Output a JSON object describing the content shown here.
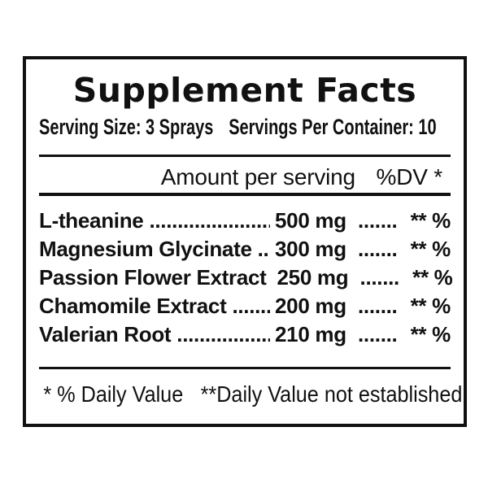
{
  "panel": {
    "title": "Supplement Facts",
    "serving": {
      "size_label": "Serving Size: 3 Sprays",
      "container_label": "Servings Per Container: 10"
    },
    "column_header": {
      "amount_label": "Amount per serving",
      "dv_label": "%DV *"
    },
    "rows": [
      {
        "name": "L-theanine",
        "amount": "500 mg",
        "dv": "** %"
      },
      {
        "name": "Magnesium Glycinate",
        "amount": "300 mg",
        "dv": "** %"
      },
      {
        "name": "Passion Flower Extract",
        "amount": "250 mg",
        "dv": "** %"
      },
      {
        "name": "Chamomile Extract",
        "amount": "200 mg",
        "dv": "** %"
      },
      {
        "name": "Valerian Root",
        "amount": "210 mg",
        "dv": "** %"
      }
    ],
    "leader_dots": "............................................................",
    "mid_dots": ".......",
    "footnote": {
      "dv_note": "* % Daily Value",
      "not_established_note": "**Daily Value not established"
    },
    "colors": {
      "text": "#111111",
      "border": "#111111",
      "background": "#ffffff"
    }
  }
}
